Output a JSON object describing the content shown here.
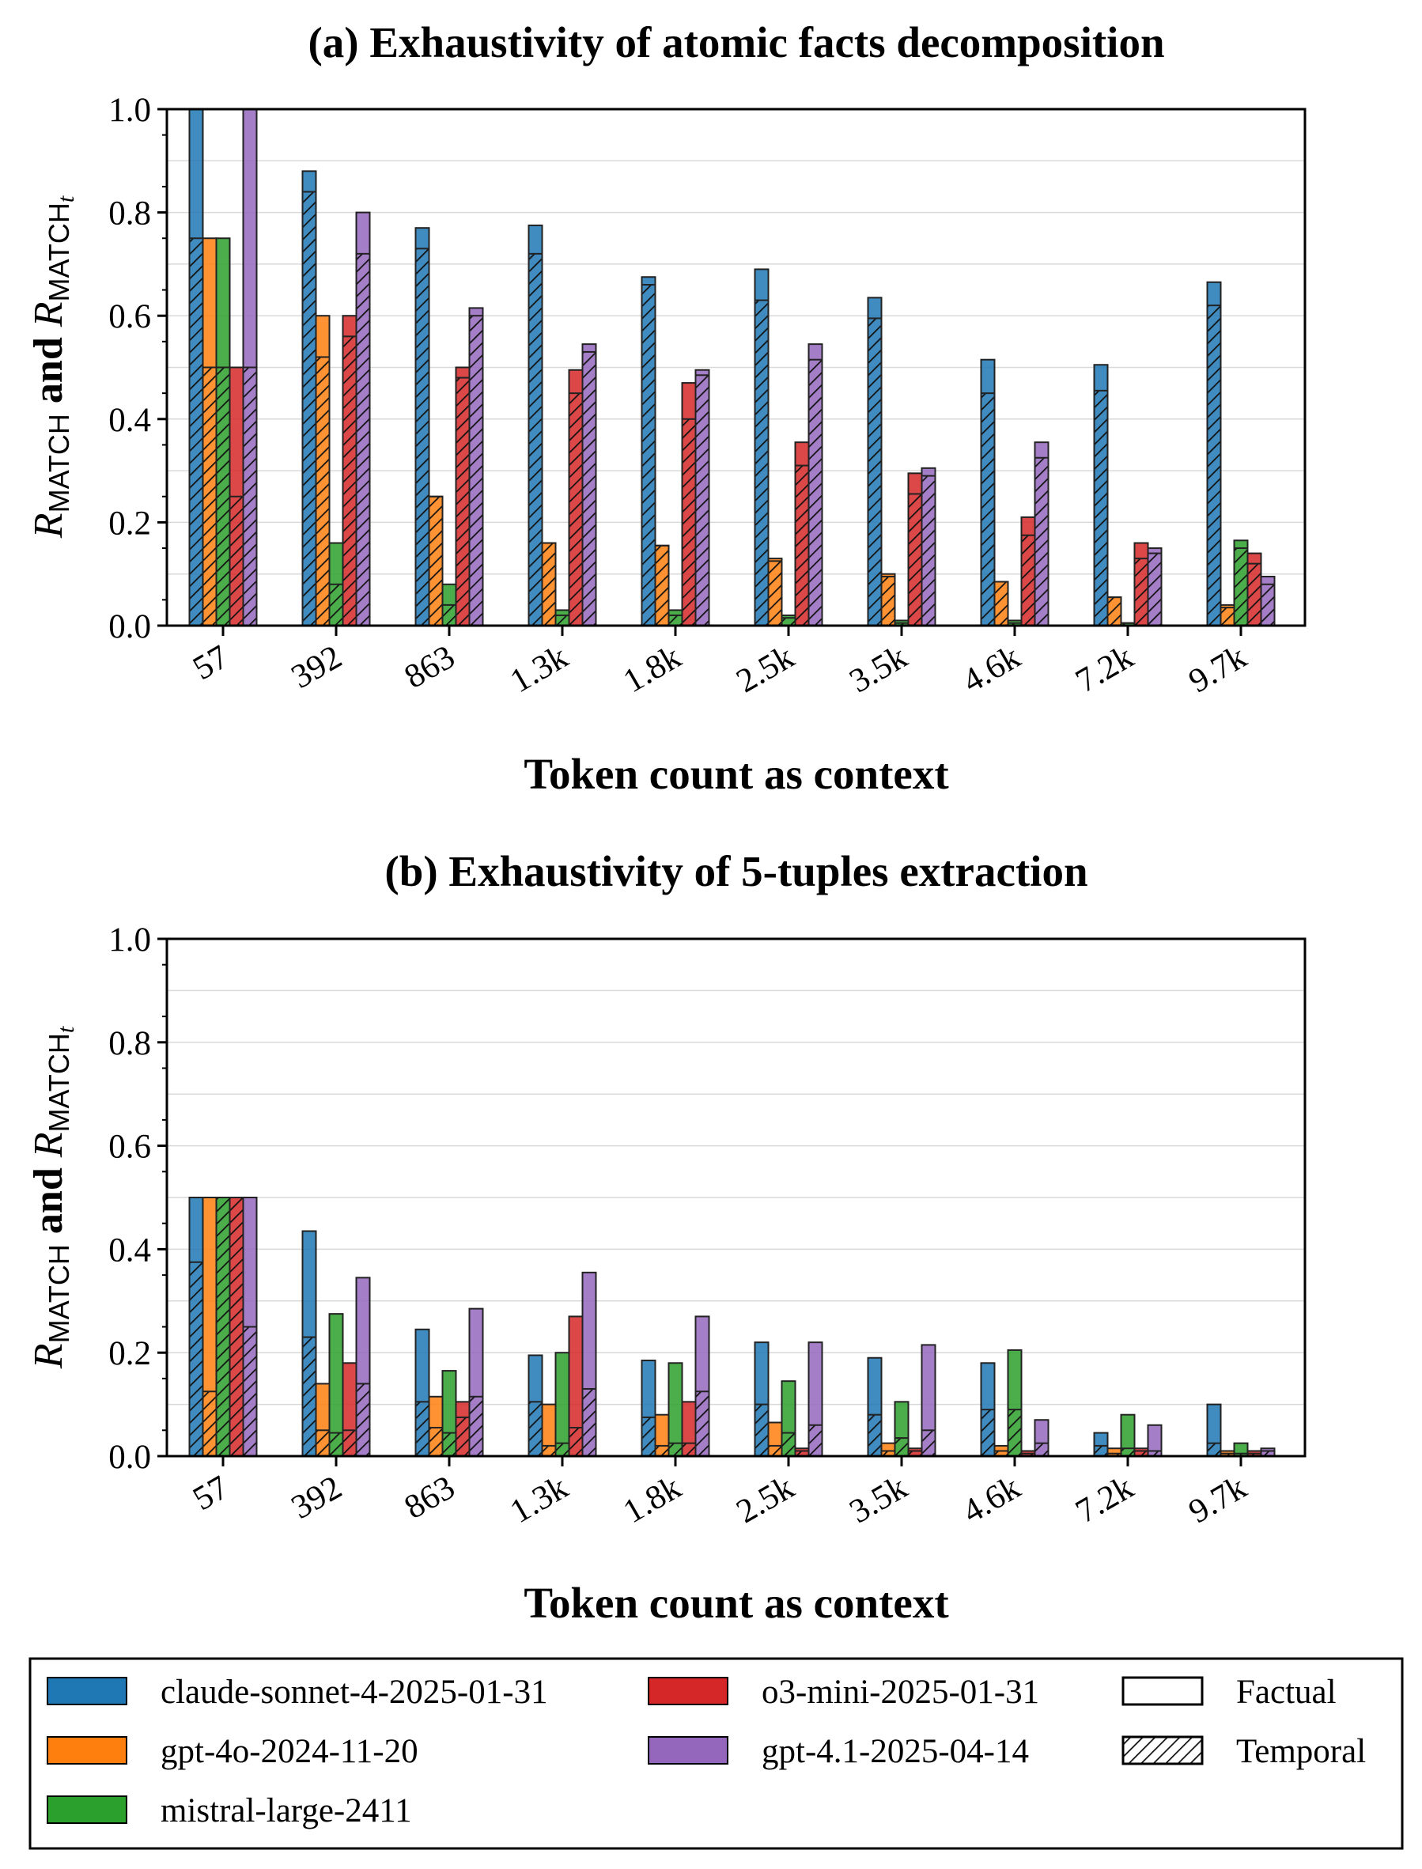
{
  "chart_data": [
    {
      "type": "bar",
      "title": "(a) Exhaustivity of atomic facts decomposition",
      "xlabel": "Token count as context",
      "ylabel": "R_MATCH and R_MATCH_t",
      "ylabel_parts": {
        "r1": "R",
        "sub1": "MATCH",
        "and": " and ",
        "r2": "R",
        "sub2": "MATCH",
        "subsub": "t"
      },
      "ylim": [
        0,
        1.0
      ],
      "yticks": [
        "0.0",
        "0.2",
        "0.4",
        "0.6",
        "0.8",
        "1.0"
      ],
      "categories": [
        "57",
        "392",
        "863",
        "1.3k",
        "1.8k",
        "2.5k",
        "3.5k",
        "4.6k",
        "7.2k",
        "9.7k"
      ],
      "grid": "horizontal",
      "series": [
        {
          "name": "claude-sonnet-4-2025-01-31",
          "color": "#1f77b4",
          "factual": [
            1.0,
            0.88,
            0.77,
            0.775,
            0.675,
            0.69,
            0.635,
            0.515,
            0.505,
            0.665
          ],
          "temporal": [
            0.75,
            0.84,
            0.73,
            0.72,
            0.66,
            0.63,
            0.595,
            0.45,
            0.455,
            0.62
          ]
        },
        {
          "name": "gpt-4o-2024-11-20",
          "color": "#ff7f0e",
          "factual": [
            0.75,
            0.6,
            0.25,
            0.16,
            0.155,
            0.13,
            0.1,
            0.085,
            0.055,
            0.04
          ],
          "temporal": [
            0.5,
            0.52,
            0.25,
            0.16,
            0.155,
            0.125,
            0.095,
            0.085,
            0.055,
            0.035
          ]
        },
        {
          "name": "mistral-large-2411",
          "color": "#2ca02c",
          "factual": [
            0.75,
            0.16,
            0.08,
            0.03,
            0.03,
            0.02,
            0.01,
            0.01,
            0.005,
            0.165
          ],
          "temporal": [
            0.5,
            0.08,
            0.04,
            0.02,
            0.02,
            0.015,
            0.005,
            0.005,
            0.005,
            0.15
          ]
        },
        {
          "name": "o3-mini-2025-01-31",
          "color": "#d62728",
          "factual": [
            0.5,
            0.6,
            0.5,
            0.495,
            0.47,
            0.355,
            0.295,
            0.21,
            0.16,
            0.14
          ],
          "temporal": [
            0.25,
            0.56,
            0.48,
            0.45,
            0.4,
            0.31,
            0.255,
            0.175,
            0.13,
            0.12
          ]
        },
        {
          "name": "gpt-4.1-2025-04-14",
          "color": "#9467bd",
          "factual": [
            1.0,
            0.8,
            0.615,
            0.545,
            0.495,
            0.545,
            0.305,
            0.355,
            0.15,
            0.095
          ],
          "temporal": [
            0.5,
            0.72,
            0.6,
            0.53,
            0.485,
            0.515,
            0.29,
            0.325,
            0.14,
            0.08
          ]
        }
      ]
    },
    {
      "type": "bar",
      "title": "(b) Exhaustivity of 5-tuples extraction",
      "xlabel": "Token count as context",
      "ylabel": "R_MATCH and R_MATCH_t",
      "ylabel_parts": {
        "r1": "R",
        "sub1": "MATCH",
        "and": " and ",
        "r2": "R",
        "sub2": "MATCH",
        "subsub": "t"
      },
      "ylim": [
        0,
        1.0
      ],
      "yticks": [
        "0.0",
        "0.2",
        "0.4",
        "0.6",
        "0.8",
        "1.0"
      ],
      "categories": [
        "57",
        "392",
        "863",
        "1.3k",
        "1.8k",
        "2.5k",
        "3.5k",
        "4.6k",
        "7.2k",
        "9.7k"
      ],
      "grid": "horizontal",
      "series": [
        {
          "name": "claude-sonnet-4-2025-01-31",
          "color": "#1f77b4",
          "factual": [
            0.5,
            0.435,
            0.245,
            0.195,
            0.185,
            0.22,
            0.19,
            0.18,
            0.045,
            0.1
          ],
          "temporal": [
            0.375,
            0.23,
            0.105,
            0.105,
            0.075,
            0.1,
            0.08,
            0.09,
            0.02,
            0.025
          ]
        },
        {
          "name": "gpt-4o-2024-11-20",
          "color": "#ff7f0e",
          "factual": [
            0.5,
            0.14,
            0.115,
            0.1,
            0.08,
            0.065,
            0.025,
            0.02,
            0.015,
            0.01
          ],
          "temporal": [
            0.125,
            0.05,
            0.055,
            0.02,
            0.02,
            0.02,
            0.01,
            0.01,
            0.005,
            0.005
          ]
        },
        {
          "name": "mistral-large-2411",
          "color": "#2ca02c",
          "factual": [
            0.5,
            0.275,
            0.165,
            0.2,
            0.18,
            0.145,
            0.105,
            0.205,
            0.08,
            0.025
          ],
          "temporal": [
            0.5,
            0.045,
            0.045,
            0.025,
            0.025,
            0.045,
            0.035,
            0.09,
            0.015,
            0.005
          ]
        },
        {
          "name": "o3-mini-2025-01-31",
          "color": "#d62728",
          "factual": [
            0.5,
            0.18,
            0.105,
            0.27,
            0.105,
            0.015,
            0.015,
            0.01,
            0.015,
            0.01
          ],
          "temporal": [
            0.5,
            0.05,
            0.075,
            0.055,
            0.025,
            0.01,
            0.01,
            0.005,
            0.01,
            0.005
          ]
        },
        {
          "name": "gpt-4.1-2025-04-14",
          "color": "#9467bd",
          "factual": [
            0.5,
            0.345,
            0.285,
            0.355,
            0.27,
            0.22,
            0.215,
            0.07,
            0.06,
            0.015
          ],
          "temporal": [
            0.25,
            0.14,
            0.115,
            0.13,
            0.125,
            0.06,
            0.05,
            0.025,
            0.01,
            0.01
          ]
        }
      ]
    }
  ],
  "legend": {
    "models": [
      {
        "label": "claude-sonnet-4-2025-01-31",
        "color": "#1f77b4"
      },
      {
        "label": "gpt-4o-2024-11-20",
        "color": "#ff7f0e"
      },
      {
        "label": "mistral-large-2411",
        "color": "#2ca02c"
      },
      {
        "label": "o3-mini-2025-01-31",
        "color": "#d62728"
      },
      {
        "label": "gpt-4.1-2025-04-14",
        "color": "#9467bd"
      }
    ],
    "types": [
      {
        "label": "Factual",
        "hatch": false
      },
      {
        "label": "Temporal",
        "hatch": true
      }
    ]
  }
}
